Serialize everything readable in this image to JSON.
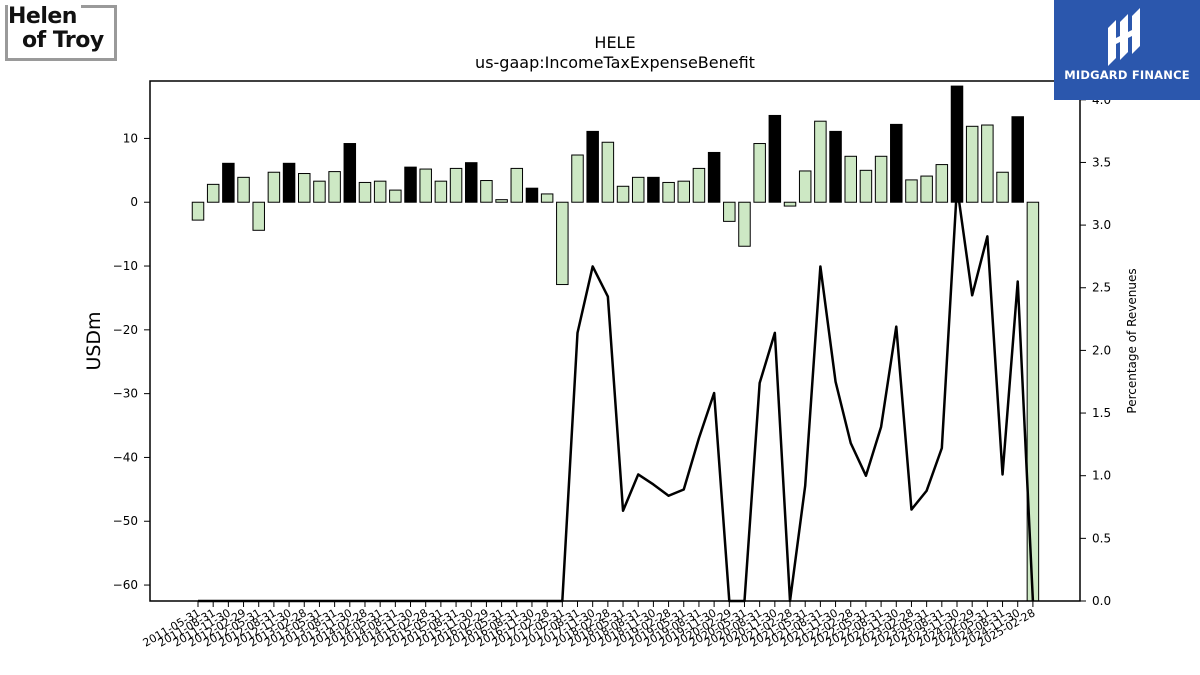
{
  "logos": {
    "left_line1": "Helen",
    "left_line2": "of Troy",
    "right_brand": "MIDGARD FINANCE"
  },
  "chart_data": {
    "type": "bar",
    "title": "HELE",
    "subtitle": "us-gaap:IncomeTaxExpenseBenefit",
    "ylabel": "USDm",
    "y2label": "Percentage of Revenues",
    "ylim": [
      -62.5,
      19
    ],
    "y2lim": [
      0.0,
      4.15
    ],
    "yticks": [
      10,
      0,
      -10,
      -20,
      -30,
      -40,
      -50,
      -60
    ],
    "y2ticks": [
      0.0,
      0.5,
      1.0,
      1.5,
      2.0,
      2.5,
      3.0,
      3.5,
      4.0
    ],
    "y2tick_labels": [
      "0.0",
      "0.5",
      "1.0",
      "1.5",
      "2.0",
      "2.5",
      "3.0",
      "3.5",
      "4.0"
    ],
    "colors": {
      "bar_light": "#cde8c4",
      "bar_dark": "#000000",
      "line": "#000000"
    },
    "tick_labels": [
      "2011-05-31",
      "2011-08-31",
      "2011-11-30",
      "2012-02-29",
      "2012-05-31",
      "2012-08-31",
      "2012-11-30",
      "2013-02-28",
      "2013-05-31",
      "2013-08-31",
      "2013-11-30",
      "2014-02-28",
      "2014-05-31",
      "2014-08-31",
      "2014-11-30",
      "2015-02-28",
      "2015-05-31",
      "2015-08-31",
      "2015-11-30",
      "2016-02-29",
      "2016-05-31",
      "2016-08-31",
      "2016-11-30",
      "2017-02-28",
      "2017-05-31",
      "2017-08-31",
      "2017-11-30",
      "2018-02-28",
      "2018-05-31",
      "2018-08-31",
      "2018-11-30",
      "2019-02-28",
      "2019-05-31",
      "2019-08-31",
      "2019-11-30",
      "2020-02-29",
      "2020-05-31",
      "2020-08-31",
      "2020-11-30",
      "2021-02-28",
      "2021-05-31",
      "2021-08-31",
      "2021-11-30",
      "2022-02-28",
      "2022-05-31",
      "2022-08-31",
      "2022-11-30",
      "2023-02-28",
      "2023-05-31",
      "2023-08-31",
      "2023-11-30",
      "2024-02-29",
      "2024-05-31",
      "2024-08-31",
      "2024-11-30",
      "2025-02-28"
    ],
    "values": [
      -2.8,
      2.8,
      6.1,
      3.9,
      -4.4,
      4.7,
      6.1,
      4.5,
      3.3,
      4.8,
      9.2,
      3.1,
      3.3,
      1.9,
      5.5,
      5.2,
      3.3,
      5.3,
      6.2,
      3.4,
      0.4,
      5.3,
      2.2,
      1.3,
      -12.9,
      7.4,
      11.1,
      9.4,
      2.5,
      3.9,
      3.9,
      3.1,
      3.3,
      5.3,
      7.8,
      -3.0,
      -6.9,
      9.2,
      13.6,
      -0.6,
      4.9,
      12.7,
      11.1,
      7.2,
      5.0,
      7.2,
      12.2,
      3.5,
      4.1,
      5.9,
      18.2,
      11.9,
      12.1,
      4.7,
      13.4,
      -62.5
    ],
    "bar_highlight": [
      false,
      false,
      true,
      false,
      false,
      false,
      true,
      false,
      false,
      false,
      true,
      false,
      false,
      false,
      true,
      false,
      false,
      false,
      true,
      false,
      false,
      false,
      true,
      false,
      false,
      false,
      true,
      false,
      false,
      false,
      true,
      false,
      false,
      false,
      true,
      false,
      false,
      false,
      true,
      false,
      false,
      false,
      true,
      false,
      false,
      false,
      true,
      false,
      false,
      false,
      true,
      false,
      false,
      false,
      true,
      false
    ],
    "line_values": [
      0.0,
      0.0,
      0.0,
      0.0,
      0.0,
      0.0,
      0.0,
      0.0,
      0.0,
      0.0,
      0.0,
      0.0,
      0.0,
      0.0,
      0.0,
      0.0,
      0.0,
      0.0,
      0.0,
      0.0,
      0.0,
      0.0,
      0.0,
      0.0,
      0.0,
      2.14,
      2.67,
      2.43,
      0.72,
      1.01,
      0.93,
      0.84,
      0.89,
      1.3,
      1.66,
      0.0,
      0.0,
      1.74,
      2.14,
      0.0,
      0.92,
      2.67,
      1.75,
      1.26,
      1.0,
      1.39,
      2.19,
      0.73,
      0.88,
      1.22,
      3.31,
      2.44,
      2.91,
      1.01,
      2.55,
      0.0
    ]
  }
}
